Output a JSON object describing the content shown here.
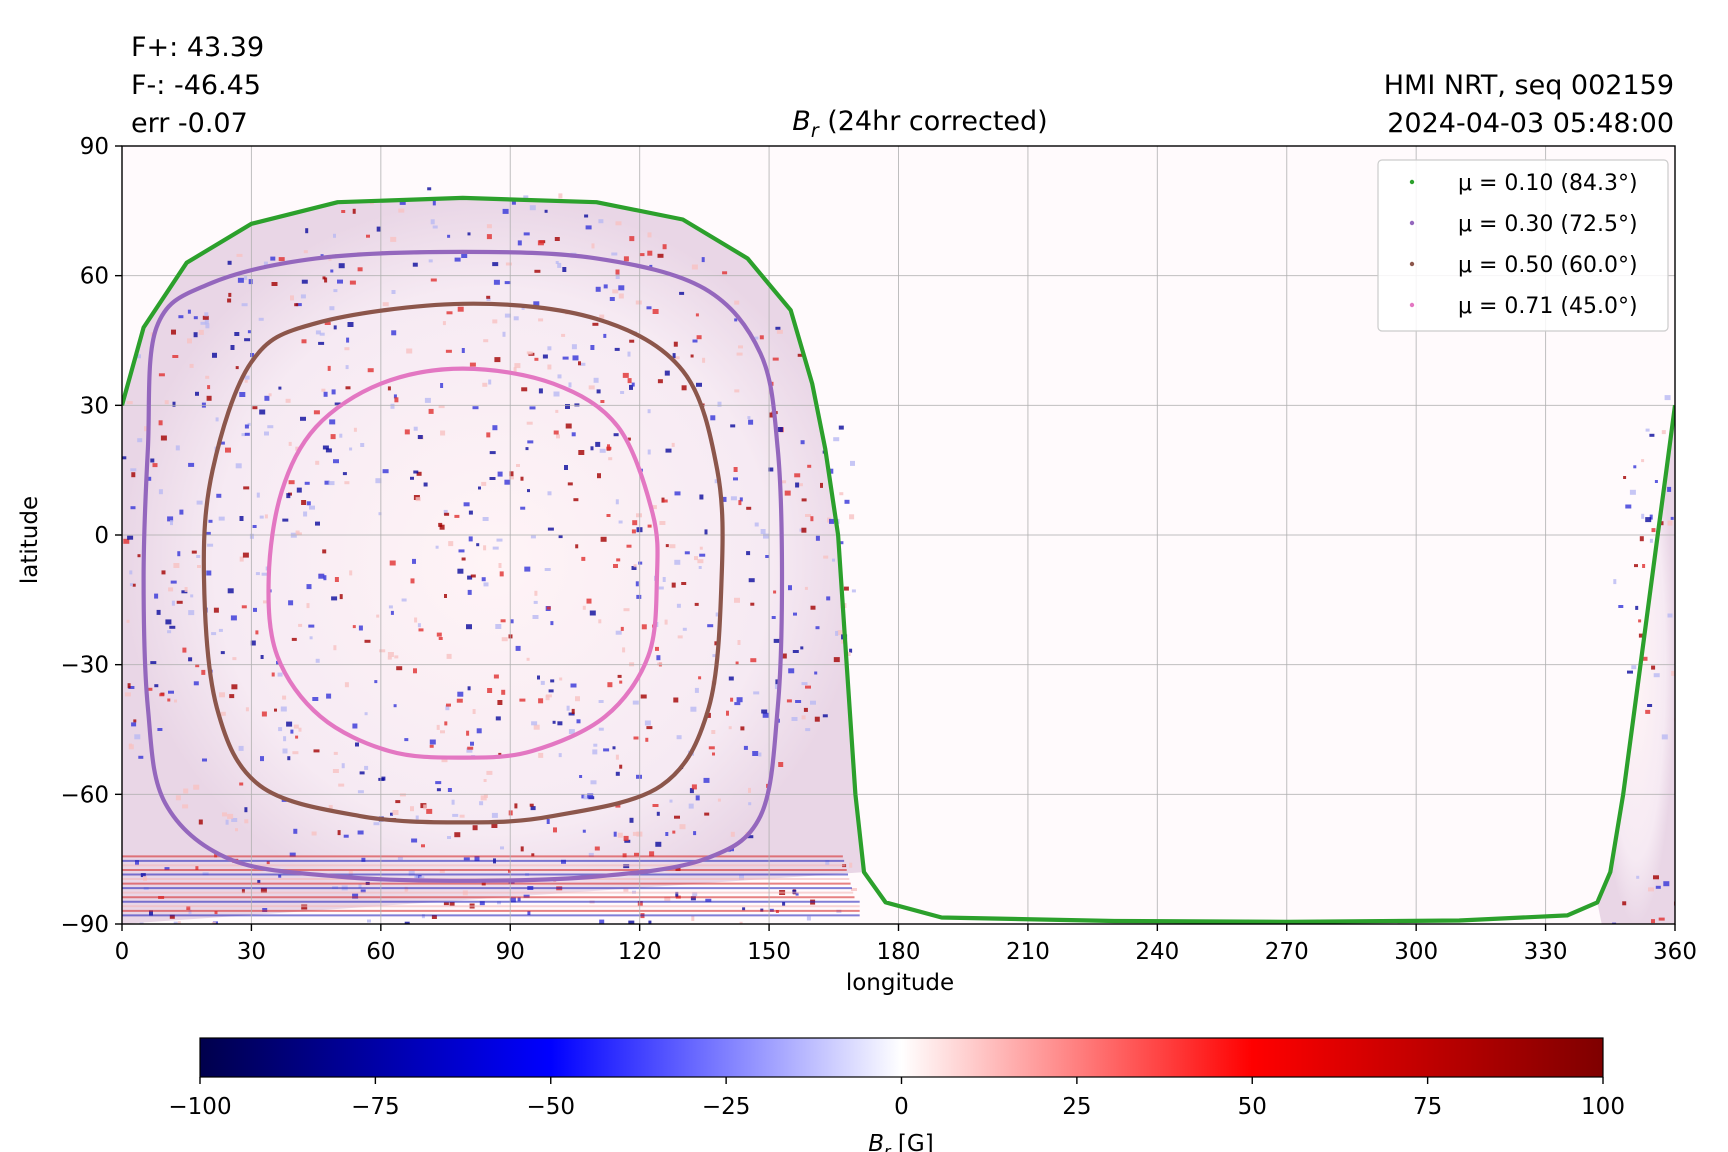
{
  "header": {
    "flux_positive": "F+: 43.39",
    "flux_negative": "F-: -46.45",
    "flux_error": "err -0.07",
    "instrument": "HMI NRT, seq 002159",
    "timestamp": "2024-04-03 05:48:00"
  },
  "chart_data": {
    "type": "heatmap",
    "title_symbol": "B",
    "title_subscript": "r",
    "title_text": " (24hr corrected)",
    "xlabel": "longitude",
    "ylabel": "latitude",
    "xlim": [
      0,
      360
    ],
    "ylim": [
      -90,
      90
    ],
    "xticks": [
      "0",
      "30",
      "60",
      "90",
      "120",
      "150",
      "180",
      "210",
      "240",
      "270",
      "300",
      "330",
      "360"
    ],
    "yticks": [
      "90",
      "60",
      "30",
      "0",
      "−30",
      "−60",
      "−90"
    ],
    "grid": true,
    "legend_placement": "top-right",
    "disk_center": {
      "longitude": 79,
      "latitude": -6.5
    },
    "disk_observed": {
      "lon_min": 0,
      "lon_max": 170,
      "wrap_lon_min": 343,
      "wrap_lon_max": 360
    },
    "mu_contours": [
      {
        "label": "μ = 0.10 (84.3°)",
        "mu": 0.1,
        "color": "#2ca02c",
        "points": [
          [
            0,
            30
          ],
          [
            5,
            48
          ],
          [
            15,
            63
          ],
          [
            30,
            72
          ],
          [
            50,
            77
          ],
          [
            79,
            78
          ],
          [
            110,
            77
          ],
          [
            130,
            73
          ],
          [
            145,
            64
          ],
          [
            155,
            52
          ],
          [
            160,
            35
          ],
          [
            163,
            20
          ],
          [
            166,
            0
          ],
          [
            168,
            -30
          ],
          [
            170,
            -60
          ],
          [
            172,
            -78
          ],
          [
            177,
            -85
          ],
          [
            190,
            -88.5
          ],
          [
            230,
            -89.3
          ],
          [
            270,
            -89.5
          ],
          [
            310,
            -89.2
          ],
          [
            335,
            -88
          ],
          [
            342,
            -85
          ],
          [
            345,
            -78
          ],
          [
            348,
            -60
          ],
          [
            352,
            -30
          ],
          [
            356,
            0
          ],
          [
            358,
            15
          ],
          [
            360,
            30
          ]
        ]
      },
      {
        "label": "μ = 0.30 (72.5°)",
        "mu": 0.3,
        "color": "#9467bd",
        "points": [
          [
            8,
            48
          ],
          [
            20,
            58
          ],
          [
            45,
            64
          ],
          [
            79,
            65.5
          ],
          [
            110,
            64
          ],
          [
            135,
            57
          ],
          [
            148,
            42
          ],
          [
            152,
            20
          ],
          [
            153,
            -10
          ],
          [
            152,
            -40
          ],
          [
            148,
            -65
          ],
          [
            135,
            -75
          ],
          [
            110,
            -79
          ],
          [
            79,
            -80
          ],
          [
            50,
            -79
          ],
          [
            25,
            -75
          ],
          [
            10,
            -62
          ],
          [
            6,
            -40
          ],
          [
            5,
            -10
          ],
          [
            6,
            20
          ]
        ]
      },
      {
        "label": "μ = 0.50 (60.0°)",
        "mu": 0.5,
        "color": "#8c564b",
        "points": [
          [
            30,
            40
          ],
          [
            45,
            49
          ],
          [
            79,
            53.5
          ],
          [
            110,
            50
          ],
          [
            130,
            38
          ],
          [
            138,
            15
          ],
          [
            139,
            -10
          ],
          [
            136,
            -40
          ],
          [
            125,
            -58
          ],
          [
            100,
            -65
          ],
          [
            79,
            -66.5
          ],
          [
            55,
            -65
          ],
          [
            32,
            -58
          ],
          [
            22,
            -40
          ],
          [
            19,
            -10
          ],
          [
            21,
            15
          ]
        ]
      },
      {
        "label": "μ = 0.71 (45.0°)",
        "mu": 0.71,
        "color": "#e377c2",
        "points": [
          [
            45,
            25
          ],
          [
            60,
            35
          ],
          [
            79,
            38.5
          ],
          [
            100,
            35
          ],
          [
            115,
            25
          ],
          [
            123,
            5
          ],
          [
            124,
            -10
          ],
          [
            122,
            -28
          ],
          [
            112,
            -42
          ],
          [
            95,
            -50
          ],
          [
            79,
            -51.5
          ],
          [
            62,
            -50
          ],
          [
            46,
            -42
          ],
          [
            36,
            -28
          ],
          [
            34,
            -10
          ],
          [
            37,
            10
          ]
        ]
      }
    ],
    "colorbar": {
      "label_symbol": "B",
      "label_subscript": "r",
      "label_unit": " [G]",
      "range": [
        -100,
        100
      ],
      "ticks": [
        "−100",
        "−75",
        "−50",
        "−25",
        "0",
        "25",
        "50",
        "75",
        "100"
      ],
      "colormap": "seismic",
      "colors": [
        "#00004c",
        "#0000ff",
        "#ffffff",
        "#ff0000",
        "#7f0000"
      ]
    }
  }
}
